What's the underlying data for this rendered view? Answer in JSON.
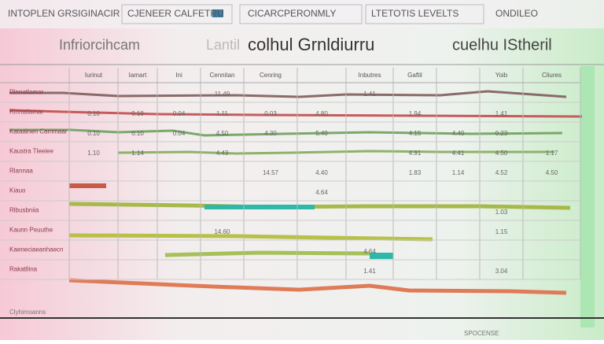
{
  "header": {
    "tabs": [
      "INTOPLEN GRSIGINACIR",
      "CJENEER CALFETRU",
      "CICARCPERONMLY",
      "LTETOTIS LEVELTS",
      "ONDILEO"
    ],
    "titles": [
      "Infriorcihcam",
      "Lantil",
      "colhul Grnldiurru",
      "cuelhu IStheril"
    ]
  },
  "table": {
    "columns": [
      "Iurinut",
      "Iamart",
      "Ini",
      "Cennitan",
      "Cenring",
      null,
      "Inbutres",
      "Gaftil",
      null,
      "Yoib",
      "Cliures"
    ],
    "rows": [
      {
        "label": "Rlnnatlamar",
        "cells": [
          null,
          null,
          null,
          "11.49",
          null,
          null,
          "1.41",
          null,
          null,
          null,
          null
        ]
      },
      {
        "label": "Rlnnatlamar",
        "cells": [
          "0.10",
          "0.18",
          "0.04",
          "1.11",
          "0.03",
          "4.80",
          null,
          "1.94",
          null,
          "1.41",
          null
        ]
      },
      {
        "label": "Kataalnen Cammaar",
        "cells": [
          "0.10",
          "0.10",
          "0.04",
          "4.50",
          "4.30",
          "5.40",
          null,
          "4.15",
          "4.40",
          "0.23",
          null
        ]
      },
      {
        "label": "Kaustra Tleeiee",
        "cells": [
          "1.10",
          "1.14",
          null,
          "4.43",
          null,
          null,
          null,
          "4.91",
          "4.41",
          "4.50",
          "1.17"
        ]
      },
      {
        "label": "Rlannaa",
        "cells": [
          null,
          null,
          null,
          null,
          "14.57",
          "4.40",
          null,
          "1.83",
          "1.14",
          "4.52",
          "4.50"
        ]
      },
      {
        "label": "Kiauo",
        "cells": [
          null,
          null,
          null,
          null,
          null,
          "4.64",
          null,
          null,
          null,
          null,
          null
        ]
      },
      {
        "label": "Rlbusbniia",
        "cells": [
          null,
          null,
          null,
          null,
          null,
          null,
          null,
          null,
          null,
          "1.03",
          null
        ]
      },
      {
        "label": "Kaunn Peuuthe",
        "cells": [
          null,
          null,
          null,
          "14.60",
          null,
          null,
          null,
          null,
          null,
          "1.15",
          null
        ]
      },
      {
        "label": "Kaeneciaeanhaecn",
        "cells": [
          null,
          null,
          null,
          null,
          null,
          null,
          "4.64",
          null,
          null,
          null,
          null
        ]
      },
      {
        "label": "Rakatllina",
        "cells": [
          null,
          null,
          null,
          null,
          null,
          null,
          "1.41",
          null,
          null,
          "3.04",
          null
        ]
      }
    ],
    "footer": [
      "Clyhimoanns",
      "SPOCENSE"
    ]
  }
}
